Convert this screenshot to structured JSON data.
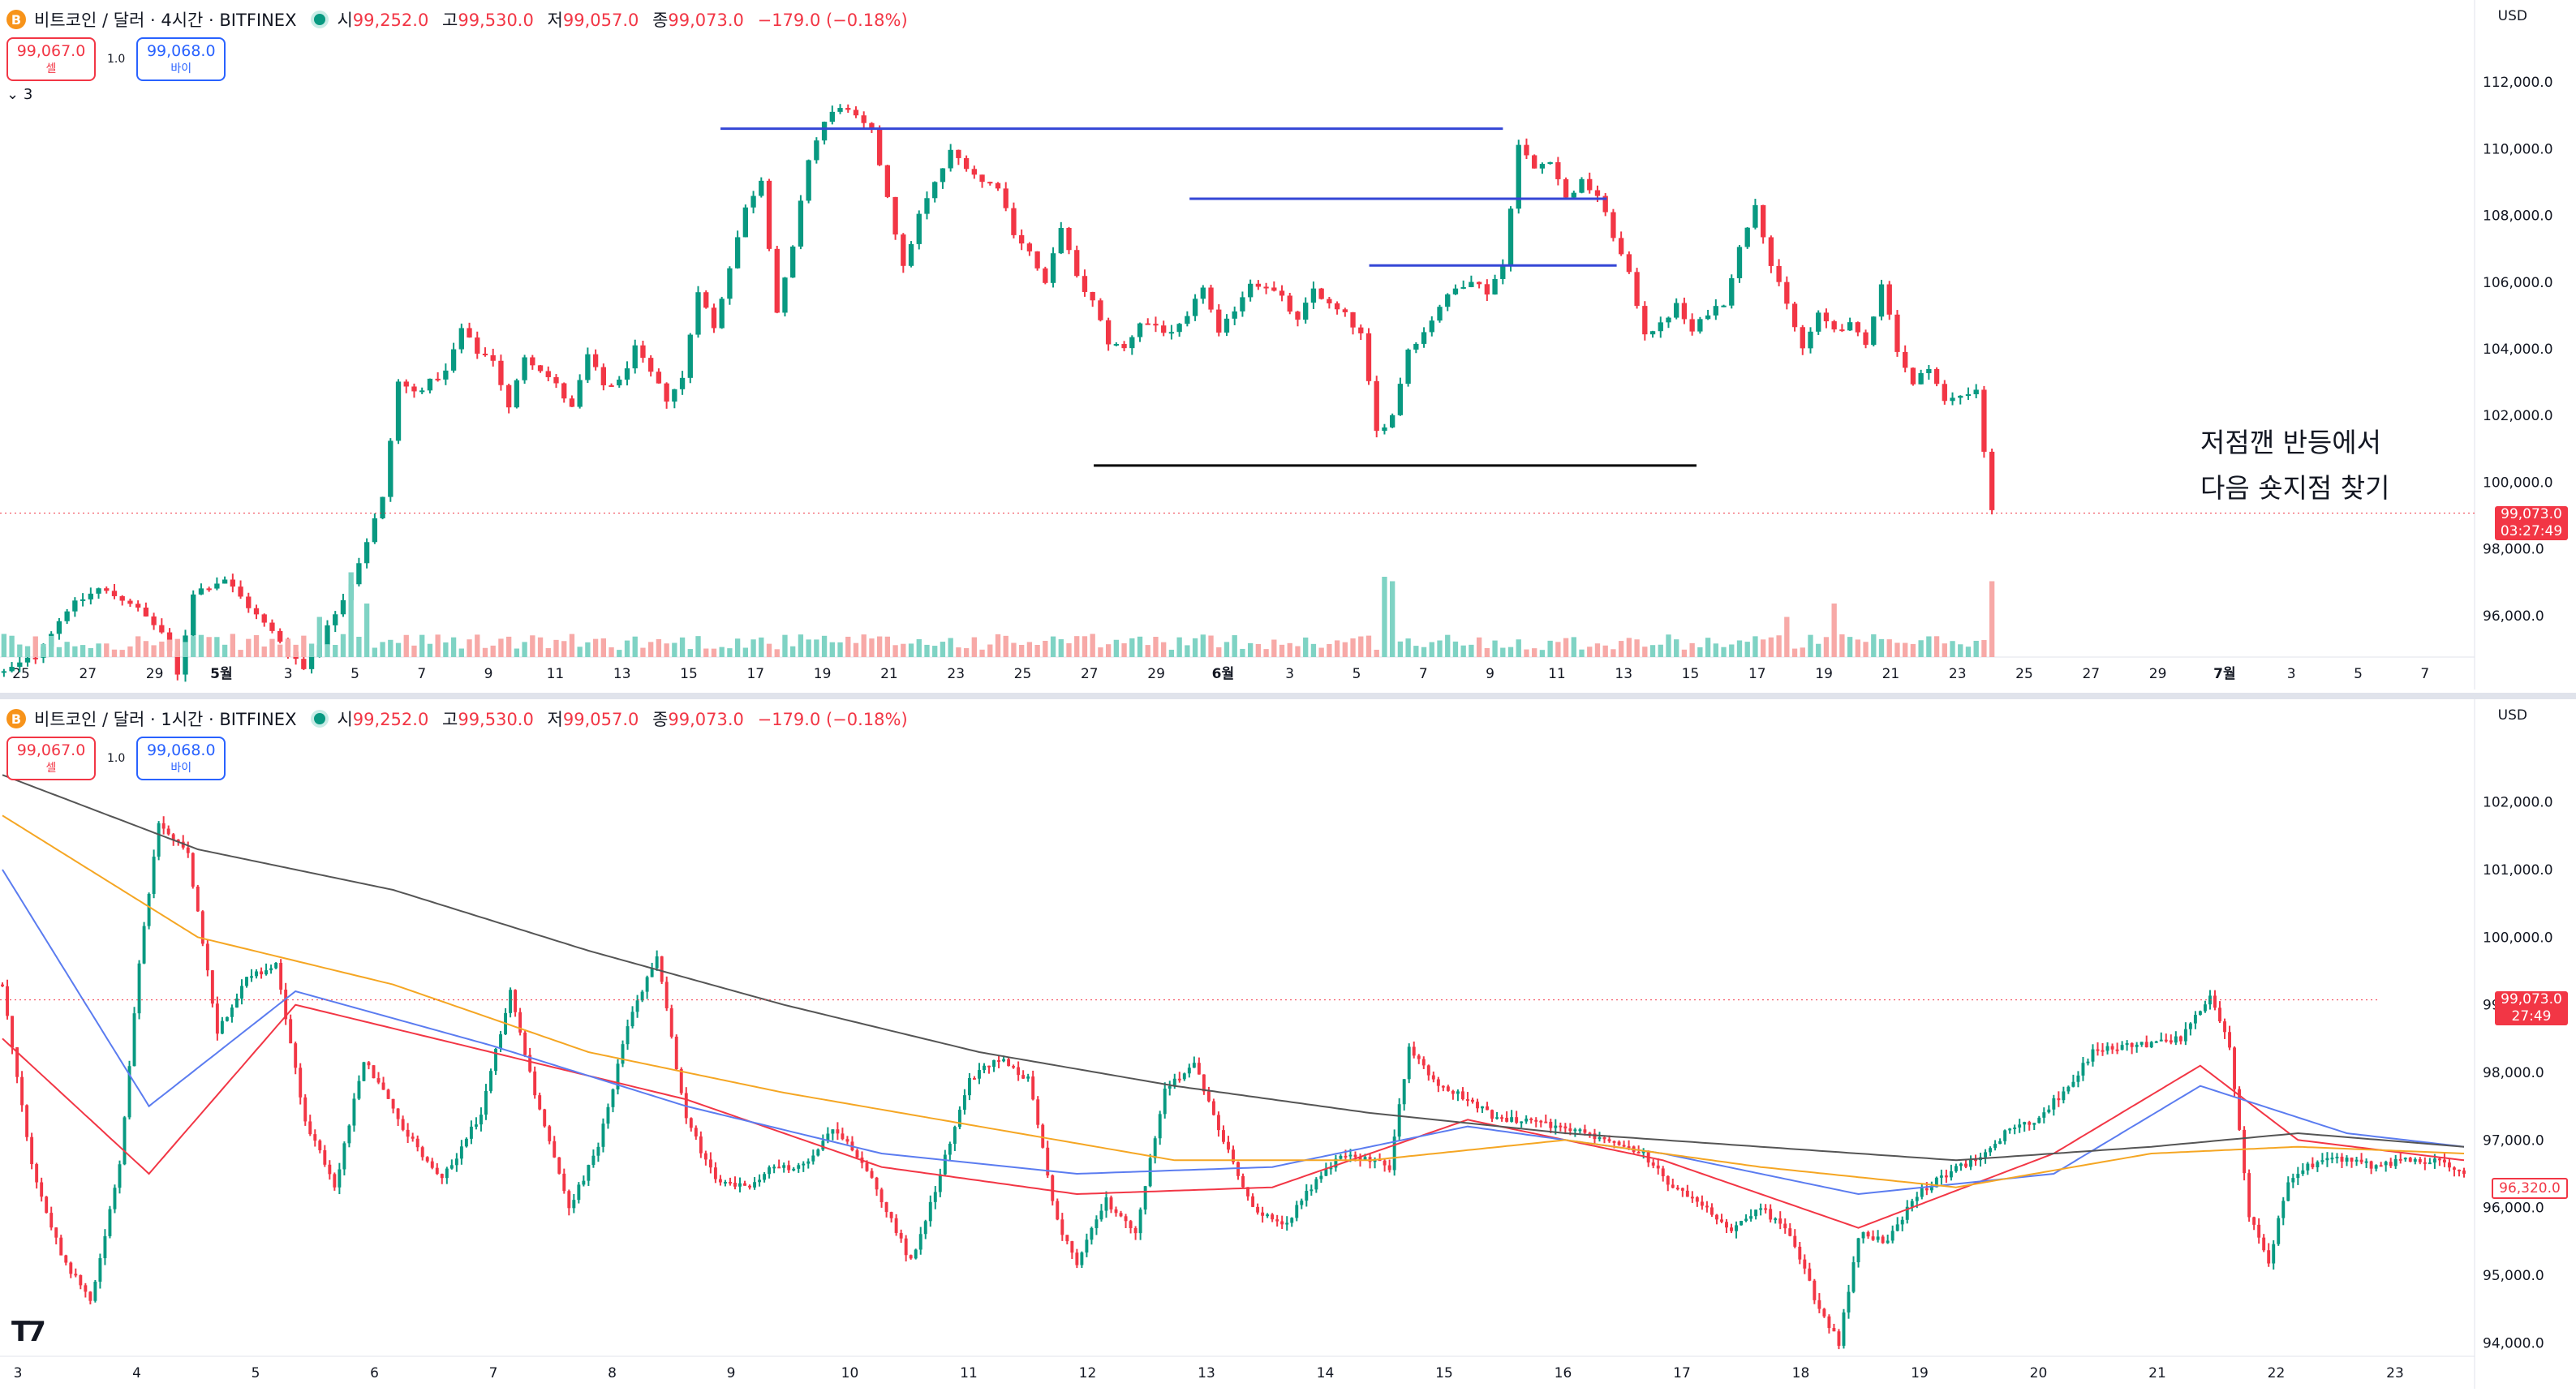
{
  "header": {
    "symbol_title_4h": "비트코인 / 달러 · 4시간 · BITFINEX",
    "symbol_title_1h": "비트코인 / 달러 · 1시간 · BITFINEX",
    "ohlc_open_label": "시",
    "ohlc_open": "99,252.0",
    "ohlc_high_label": "고",
    "ohlc_high": "99,530.0",
    "ohlc_low_label": "저",
    "ohlc_low": "99,057.0",
    "ohlc_close_label": "종",
    "ohlc_close": "99,073.0",
    "ohlc_change": "−179.0 (−0.18%)",
    "sell_price": "99,067.0",
    "sell_label": "셀",
    "buy_price": "99,068.0",
    "buy_label": "바이",
    "spread": "1.0",
    "layers_label": "3",
    "currency": "USD",
    "coin_glyph": "B"
  },
  "annotation": {
    "line1": "저점깬 반등에서",
    "line2": "다음 숏지점 찾기"
  },
  "price_tags": {
    "top_price": "99,073.0",
    "top_countdown": "03:27:49",
    "bottom_price": "99,073.0",
    "bottom_countdown": "27:49",
    "bottom_ma": "96,320.0"
  },
  "colors": {
    "up": "#089981",
    "down": "#f23645",
    "up_volume": "#7fd3c4",
    "down_volume": "#f7a9a7",
    "hline_blue": "#3446d6",
    "hline_black": "#000000",
    "ma_red": "#f23645",
    "ma_blue": "#5b7cf0",
    "ma_orange": "#f5a623",
    "ma_dark": "#555555"
  },
  "chart_data": [
    {
      "type": "candlestick",
      "title": "비트코인 / 달러 · 4시간 · BITFINEX",
      "ylim": [
        95000,
        113000
      ],
      "y_ticks": [
        "112,000.0",
        "110,000.0",
        "108,000.0",
        "106,000.0",
        "104,000.0",
        "102,000.0",
        "100,000.0",
        "98,000.0",
        "96,000.0"
      ],
      "x_ticks": [
        "25",
        "27",
        "29",
        "5월",
        "3",
        "5",
        "7",
        "9",
        "11",
        "13",
        "15",
        "17",
        "19",
        "21",
        "23",
        "25",
        "27",
        "29",
        "6월",
        "3",
        "5",
        "7",
        "9",
        "11",
        "13",
        "15",
        "17",
        "19",
        "21",
        "23",
        "25",
        "27",
        "29",
        "7월",
        "3",
        "5",
        "7"
      ],
      "close_path": [
        [
          0,
          94300
        ],
        [
          4,
          94800
        ],
        [
          8,
          96200
        ],
        [
          12,
          96800
        ],
        [
          16,
          96400
        ],
        [
          20,
          95500
        ],
        [
          22,
          94200
        ],
        [
          24,
          96700
        ],
        [
          28,
          97100
        ],
        [
          32,
          96000
        ],
        [
          36,
          95000
        ],
        [
          38,
          94400
        ],
        [
          40,
          95200
        ],
        [
          44,
          97000
        ],
        [
          48,
          99500
        ],
        [
          50,
          103000
        ],
        [
          52,
          102700
        ],
        [
          56,
          103300
        ],
        [
          58,
          104600
        ],
        [
          60,
          103900
        ],
        [
          62,
          103700
        ],
        [
          64,
          102200
        ],
        [
          66,
          103800
        ],
        [
          68,
          103400
        ],
        [
          70,
          102900
        ],
        [
          72,
          102200
        ],
        [
          74,
          103800
        ],
        [
          76,
          102900
        ],
        [
          78,
          103000
        ],
        [
          80,
          104000
        ],
        [
          84,
          102500
        ],
        [
          86,
          103100
        ],
        [
          88,
          105800
        ],
        [
          90,
          104600
        ],
        [
          92,
          106500
        ],
        [
          94,
          108200
        ],
        [
          96,
          109100
        ],
        [
          98,
          105100
        ],
        [
          100,
          107000
        ],
        [
          102,
          109700
        ],
        [
          104,
          110800
        ],
        [
          106,
          111300
        ],
        [
          110,
          110500
        ],
        [
          112,
          108600
        ],
        [
          114,
          106400
        ],
        [
          116,
          108000
        ],
        [
          120,
          109900
        ],
        [
          122,
          109500
        ],
        [
          124,
          109000
        ],
        [
          126,
          108900
        ],
        [
          128,
          107500
        ],
        [
          130,
          106900
        ],
        [
          132,
          105900
        ],
        [
          134,
          107700
        ],
        [
          136,
          106100
        ],
        [
          138,
          105400
        ],
        [
          140,
          104200
        ],
        [
          142,
          104000
        ],
        [
          144,
          104800
        ],
        [
          146,
          104700
        ],
        [
          148,
          104400
        ],
        [
          150,
          104900
        ],
        [
          152,
          105900
        ],
        [
          154,
          104400
        ],
        [
          156,
          105200
        ],
        [
          158,
          106000
        ],
        [
          160,
          105900
        ],
        [
          162,
          105500
        ],
        [
          164,
          104800
        ],
        [
          166,
          105800
        ],
        [
          168,
          105300
        ],
        [
          170,
          105000
        ],
        [
          172,
          104400
        ],
        [
          174,
          101500
        ],
        [
          176,
          102000
        ],
        [
          178,
          104000
        ],
        [
          180,
          104500
        ],
        [
          182,
          105300
        ],
        [
          184,
          105800
        ],
        [
          186,
          106100
        ],
        [
          188,
          105700
        ],
        [
          190,
          106500
        ],
        [
          192,
          110100
        ],
        [
          194,
          109400
        ],
        [
          196,
          109700
        ],
        [
          198,
          108500
        ],
        [
          200,
          109000
        ],
        [
          202,
          108600
        ],
        [
          204,
          107400
        ],
        [
          206,
          106200
        ],
        [
          208,
          104500
        ],
        [
          210,
          104700
        ],
        [
          212,
          105300
        ],
        [
          214,
          104500
        ],
        [
          216,
          105100
        ],
        [
          218,
          105400
        ],
        [
          220,
          107000
        ],
        [
          222,
          108400
        ],
        [
          224,
          106500
        ],
        [
          226,
          105300
        ],
        [
          228,
          104000
        ],
        [
          230,
          105000
        ],
        [
          232,
          104600
        ],
        [
          234,
          104700
        ],
        [
          236,
          104100
        ],
        [
          238,
          106000
        ],
        [
          240,
          104000
        ],
        [
          242,
          102900
        ],
        [
          244,
          103500
        ],
        [
          246,
          102400
        ],
        [
          248,
          102600
        ],
        [
          250,
          102800
        ],
        [
          252,
          99100
        ]
      ],
      "volume_spikes": [
        {
          "i": 44,
          "rel": 0.95
        },
        {
          "i": 46,
          "rel": 0.6
        },
        {
          "i": 40,
          "rel": 0.45
        },
        {
          "i": 175,
          "rel": 0.9
        },
        {
          "i": 176,
          "rel": 0.85
        },
        {
          "i": 252,
          "rel": 0.85
        },
        {
          "i": 226,
          "rel": 0.45
        },
        {
          "i": 232,
          "rel": 0.6
        }
      ],
      "hlines": [
        {
          "price": 110600,
          "x_from": 0.361,
          "x_to": 0.753,
          "color": "blue"
        },
        {
          "price": 108500,
          "x_from": 0.596,
          "x_to": 0.805,
          "color": "blue"
        },
        {
          "price": 106500,
          "x_from": 0.686,
          "x_to": 0.81,
          "color": "blue"
        },
        {
          "price": 100500,
          "x_from": 0.548,
          "x_to": 0.85,
          "color": "black"
        }
      ]
    },
    {
      "type": "candlestick",
      "title": "비트코인 / 달러 · 1시간 · BITFINEX",
      "ylim": [
        93800,
        102800
      ],
      "y_ticks": [
        "102,000.0",
        "101,000.0",
        "100,000.0",
        "99,000.0",
        "98,000.0",
        "97,000.0",
        "96,000.0",
        "95,000.0",
        "94,000.0"
      ],
      "x_ticks": [
        "3",
        "4",
        "5",
        "6",
        "7",
        "8",
        "9",
        "10",
        "11",
        "12",
        "13",
        "14",
        "15",
        "16",
        "17",
        "18",
        "19",
        "20",
        "21",
        "22",
        "23"
      ],
      "close_path": [
        [
          0,
          99300
        ],
        [
          6,
          96600
        ],
        [
          12,
          95300
        ],
        [
          18,
          94600
        ],
        [
          24,
          96600
        ],
        [
          28,
          99600
        ],
        [
          32,
          101700
        ],
        [
          38,
          101200
        ],
        [
          44,
          98600
        ],
        [
          50,
          99400
        ],
        [
          56,
          99600
        ],
        [
          62,
          97300
        ],
        [
          68,
          96300
        ],
        [
          74,
          98200
        ],
        [
          82,
          97200
        ],
        [
          90,
          96400
        ],
        [
          98,
          97400
        ],
        [
          104,
          99200
        ],
        [
          110,
          97400
        ],
        [
          116,
          96000
        ],
        [
          122,
          96900
        ],
        [
          128,
          98700
        ],
        [
          134,
          99700
        ],
        [
          140,
          97300
        ],
        [
          146,
          96400
        ],
        [
          152,
          96300
        ],
        [
          158,
          96600
        ],
        [
          164,
          96600
        ],
        [
          170,
          97200
        ],
        [
          176,
          96700
        ],
        [
          182,
          95800
        ],
        [
          186,
          95200
        ],
        [
          192,
          96500
        ],
        [
          198,
          97900
        ],
        [
          204,
          98200
        ],
        [
          210,
          97900
        ],
        [
          216,
          95800
        ],
        [
          220,
          95200
        ],
        [
          226,
          96100
        ],
        [
          232,
          95600
        ],
        [
          238,
          97800
        ],
        [
          244,
          98100
        ],
        [
          250,
          97000
        ],
        [
          256,
          96000
        ],
        [
          262,
          95700
        ],
        [
          268,
          96300
        ],
        [
          274,
          96800
        ],
        [
          280,
          96700
        ],
        [
          284,
          96600
        ],
        [
          288,
          98400
        ],
        [
          294,
          97800
        ],
        [
          300,
          97600
        ],
        [
          306,
          97300
        ],
        [
          312,
          97300
        ],
        [
          318,
          97200
        ],
        [
          324,
          97100
        ],
        [
          330,
          97000
        ],
        [
          336,
          96800
        ],
        [
          342,
          96300
        ],
        [
          348,
          96000
        ],
        [
          354,
          95700
        ],
        [
          360,
          96000
        ],
        [
          366,
          95600
        ],
        [
          372,
          94500
        ],
        [
          376,
          94000
        ],
        [
          380,
          95600
        ],
        [
          386,
          95500
        ],
        [
          392,
          96200
        ],
        [
          398,
          96500
        ],
        [
          404,
          96700
        ],
        [
          410,
          97100
        ],
        [
          416,
          97300
        ],
        [
          422,
          97700
        ],
        [
          428,
          98300
        ],
        [
          434,
          98400
        ],
        [
          440,
          98400
        ],
        [
          446,
          98500
        ],
        [
          452,
          99100
        ],
        [
          456,
          98400
        ],
        [
          460,
          95900
        ],
        [
          464,
          95200
        ],
        [
          468,
          96400
        ],
        [
          474,
          96700
        ],
        [
          480,
          96700
        ],
        [
          486,
          96600
        ],
        [
          492,
          96700
        ],
        [
          498,
          96700
        ],
        [
          504,
          96500
        ]
      ],
      "ma_series": [
        "red",
        "blue",
        "orange",
        "dark"
      ],
      "ma_lines": {
        "red": [
          [
            0,
            98500
          ],
          [
            30,
            96500
          ],
          [
            60,
            99000
          ],
          [
            100,
            98300
          ],
          [
            140,
            97600
          ],
          [
            180,
            96600
          ],
          [
            220,
            96200
          ],
          [
            260,
            96300
          ],
          [
            300,
            97300
          ],
          [
            340,
            96700
          ],
          [
            380,
            95700
          ],
          [
            420,
            96800
          ],
          [
            450,
            98100
          ],
          [
            470,
            97000
          ],
          [
            504,
            96700
          ]
        ],
        "blue": [
          [
            0,
            101000
          ],
          [
            30,
            97500
          ],
          [
            60,
            99200
          ],
          [
            100,
            98400
          ],
          [
            140,
            97500
          ],
          [
            180,
            96800
          ],
          [
            220,
            96500
          ],
          [
            260,
            96600
          ],
          [
            300,
            97200
          ],
          [
            340,
            96800
          ],
          [
            380,
            96200
          ],
          [
            420,
            96500
          ],
          [
            450,
            97800
          ],
          [
            480,
            97100
          ],
          [
            504,
            96900
          ]
        ],
        "orange": [
          [
            0,
            101800
          ],
          [
            40,
            100000
          ],
          [
            80,
            99300
          ],
          [
            120,
            98300
          ],
          [
            160,
            97700
          ],
          [
            200,
            97200
          ],
          [
            240,
            96700
          ],
          [
            280,
            96700
          ],
          [
            320,
            97000
          ],
          [
            360,
            96600
          ],
          [
            400,
            96300
          ],
          [
            440,
            96800
          ],
          [
            470,
            96900
          ],
          [
            504,
            96800
          ]
        ],
        "dark": [
          [
            0,
            102400
          ],
          [
            40,
            101300
          ],
          [
            80,
            100700
          ],
          [
            120,
            99800
          ],
          [
            160,
            99000
          ],
          [
            200,
            98300
          ],
          [
            240,
            97800
          ],
          [
            280,
            97400
          ],
          [
            320,
            97100
          ],
          [
            360,
            96900
          ],
          [
            400,
            96700
          ],
          [
            440,
            96900
          ],
          [
            470,
            97100
          ],
          [
            504,
            96900
          ]
        ]
      },
      "hlines": [
        {
          "price": 99073,
          "x_from": 0.0,
          "x_to": 0.965,
          "color": "down"
        }
      ]
    }
  ]
}
